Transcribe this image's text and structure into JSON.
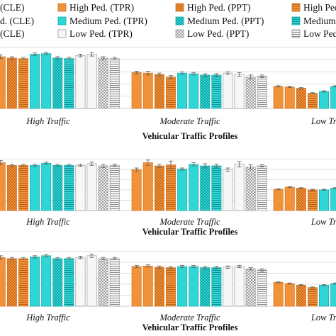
{
  "legend": {
    "items": [
      {
        "label": "(CLE)",
        "style": "orange-solid"
      },
      {
        "label": "High Ped. (TPR)",
        "style": "orange-solid"
      },
      {
        "label": "High Ped. (PPT)",
        "style": "orange-check"
      },
      {
        "label": "High Ped.",
        "style": "orange-stripe"
      },
      {
        "label": "d. (CLE)",
        "style": "cyan-solid"
      },
      {
        "label": "Medium Ped. (TPR)",
        "style": "cyan-solid"
      },
      {
        "label": "Medium Ped. (PPT)",
        "style": "cyan-check"
      },
      {
        "label": "Medium",
        "style": "cyan-stripe"
      },
      {
        "label": "(CLE)",
        "style": "gray-solid"
      },
      {
        "label": "Low Ped. (TPR)",
        "style": "gray-solid"
      },
      {
        "label": "Low Ped. (PPT)",
        "style": "gray-check"
      },
      {
        "label": "Low Ped.",
        "style": "gray-stripe"
      }
    ]
  },
  "colors": {
    "orange": "#f0923a",
    "orange_dark": "#d8731e",
    "cyan": "#2fd6d6",
    "cyan_dark": "#16aaa8",
    "gray": "#f2f2f2",
    "gray_dark": "#9a9a9a",
    "grid": "#d9d9d9",
    "error": "#666666"
  },
  "chart_data": [
    {
      "type": "bar",
      "categories": [
        "High Traffic",
        "Moderate Traffic",
        "Low Traffic"
      ],
      "xlabel": "Vehicular Traffic Profiles",
      "ylim": [
        0,
        1
      ],
      "grid": true,
      "series": [
        {
          "name": "High Ped. (CLE)",
          "values": [
            0.86,
            0.57,
            0.35
          ],
          "err": [
            0.03,
            0.02,
            0.01
          ]
        },
        {
          "name": "High Ped. (TPR)",
          "values": [
            0.82,
            0.56,
            0.34
          ],
          "err": [
            0.03,
            0.03,
            0.01
          ]
        },
        {
          "name": "High Ped. (PPT)",
          "values": [
            0.8,
            0.54,
            0.32
          ],
          "err": [
            0.02,
            0.02,
            0.01
          ]
        },
        {
          "name": "High Ped.",
          "values": [
            0.79,
            0.5,
            0.24
          ],
          "err": [
            0.02,
            0.02,
            0.01
          ]
        },
        {
          "name": "Medium Ped. (CLE)",
          "values": [
            0.86,
            0.56,
            0.27
          ],
          "err": [
            0.02,
            0.02,
            0.01
          ]
        },
        {
          "name": "Medium Ped. (TPR)",
          "values": [
            0.87,
            0.55,
            0.35
          ],
          "err": [
            0.02,
            0.02,
            0.01
          ]
        },
        {
          "name": "Medium Ped. (PPT)",
          "values": [
            0.8,
            0.53,
            0.33
          ],
          "err": [
            0.02,
            0.02,
            0.01
          ]
        },
        {
          "name": "Medium",
          "values": [
            0.79,
            0.53,
            0.3
          ],
          "err": [
            0.02,
            0.02,
            0.01
          ]
        },
        {
          "name": "Low Ped. (CLE)",
          "values": [
            0.84,
            0.56,
            0.32
          ],
          "err": [
            0.02,
            0.02,
            0.01
          ]
        },
        {
          "name": "Low Ped. (TPR)",
          "values": [
            0.86,
            0.54,
            0.31
          ],
          "err": [
            0.03,
            0.03,
            0.01
          ]
        },
        {
          "name": "Low Ped. (PPT)",
          "values": [
            0.8,
            0.5,
            0.3
          ],
          "err": [
            0.02,
            0.03,
            0.01
          ]
        },
        {
          "name": "Low Ped.",
          "values": [
            0.79,
            0.51,
            0.29
          ],
          "err": [
            0.02,
            0.02,
            0.01
          ]
        }
      ]
    },
    {
      "type": "bar",
      "categories": [
        "High Traffic",
        "Moderate Traffic",
        "Low Traffic"
      ],
      "xlabel": "Vehicular Traffic Profiles",
      "ylim": [
        0,
        1
      ],
      "grid": true,
      "series": [
        {
          "name": "High Ped. (CLE)",
          "values": [
            0.86,
            0.77,
            0.4
          ],
          "err": [
            0.03,
            0.03,
            0.01
          ]
        },
        {
          "name": "High Ped. (TPR)",
          "values": [
            0.9,
            0.9,
            0.44
          ],
          "err": [
            0.04,
            0.05,
            0.01
          ]
        },
        {
          "name": "High Ped. (PPT)",
          "values": [
            0.85,
            0.84,
            0.42
          ],
          "err": [
            0.02,
            0.03,
            0.01
          ]
        },
        {
          "name": "High Ped.",
          "values": [
            0.85,
            0.86,
            0.39
          ],
          "err": [
            0.02,
            0.07,
            0.01
          ]
        },
        {
          "name": "Medium Ped. (CLE)",
          "values": [
            0.85,
            0.78,
            0.39
          ],
          "err": [
            0.02,
            0.02,
            0.01
          ]
        },
        {
          "name": "Medium Ped. (TPR)",
          "values": [
            0.89,
            0.87,
            0.42
          ],
          "err": [
            0.02,
            0.03,
            0.01
          ]
        },
        {
          "name": "Medium Ped. (PPT)",
          "values": [
            0.85,
            0.84,
            0.42
          ],
          "err": [
            0.02,
            0.04,
            0.01
          ]
        },
        {
          "name": "Medium",
          "values": [
            0.85,
            0.84,
            0.41
          ],
          "err": [
            0.02,
            0.03,
            0.01
          ]
        },
        {
          "name": "Low Ped. (CLE)",
          "values": [
            0.85,
            0.77,
            0.39
          ],
          "err": [
            0.02,
            0.03,
            0.01
          ]
        },
        {
          "name": "Low Ped. (TPR)",
          "values": [
            0.88,
            0.87,
            0.42
          ],
          "err": [
            0.03,
            0.05,
            0.01
          ]
        },
        {
          "name": "Low Ped. (PPT)",
          "values": [
            0.84,
            0.82,
            0.4
          ],
          "err": [
            0.03,
            0.04,
            0.01
          ]
        },
        {
          "name": "Low Ped.",
          "values": [
            0.85,
            0.84,
            0.41
          ],
          "err": [
            0.02,
            0.02,
            0.01
          ]
        }
      ]
    },
    {
      "type": "bar",
      "categories": [
        "High Traffic",
        "Moderate Traffic",
        "Low Traffic"
      ],
      "xlabel": "Vehicular Traffic Profiles",
      "ylim": [
        0,
        1
      ],
      "grid": true,
      "series": [
        {
          "name": "High Ped. (CLE)",
          "values": [
            0.9,
            0.7,
            0.42
          ],
          "err": [
            0.03,
            0.02,
            0.01
          ]
        },
        {
          "name": "High Ped. (TPR)",
          "values": [
            0.86,
            0.71,
            0.4
          ],
          "err": [
            0.03,
            0.02,
            0.01
          ]
        },
        {
          "name": "High Ped. (PPT)",
          "values": [
            0.84,
            0.69,
            0.37
          ],
          "err": [
            0.02,
            0.02,
            0.01
          ]
        },
        {
          "name": "High Ped.",
          "values": [
            0.84,
            0.68,
            0.33
          ],
          "err": [
            0.02,
            0.02,
            0.01
          ]
        },
        {
          "name": "Medium Ped. (CLE)",
          "values": [
            0.87,
            0.7,
            0.37
          ],
          "err": [
            0.02,
            0.02,
            0.01
          ]
        },
        {
          "name": "Medium Ped. (TPR)",
          "values": [
            0.89,
            0.7,
            0.4
          ],
          "err": [
            0.02,
            0.02,
            0.01
          ]
        },
        {
          "name": "Medium Ped. (PPT)",
          "values": [
            0.84,
            0.68,
            0.39
          ],
          "err": [
            0.02,
            0.02,
            0.01
          ]
        },
        {
          "name": "Medium",
          "values": [
            0.84,
            0.68,
            0.36
          ],
          "err": [
            0.02,
            0.02,
            0.01
          ]
        },
        {
          "name": "Low Ped. (CLE)",
          "values": [
            0.86,
            0.69,
            0.38
          ],
          "err": [
            0.02,
            0.02,
            0.01
          ]
        },
        {
          "name": "Low Ped. (TPR)",
          "values": [
            0.89,
            0.7,
            0.38
          ],
          "err": [
            0.03,
            0.02,
            0.01
          ]
        },
        {
          "name": "Low Ped. (PPT)",
          "values": [
            0.84,
            0.66,
            0.35
          ],
          "err": [
            0.02,
            0.02,
            0.01
          ]
        },
        {
          "name": "Low Ped.",
          "values": [
            0.84,
            0.64,
            0.36
          ],
          "err": [
            0.02,
            0.02,
            0.01
          ]
        }
      ]
    }
  ]
}
